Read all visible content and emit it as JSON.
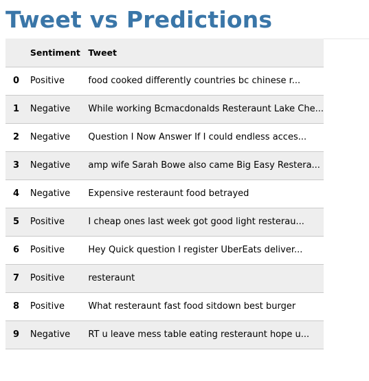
{
  "page": {
    "title": "Tweet vs Predictions"
  },
  "table": {
    "columns": [
      "",
      "Sentiment",
      "Tweet"
    ],
    "rows": [
      {
        "index": "0",
        "sentiment": "Positive",
        "tweet": "food cooked differently countries bc chinese r..."
      },
      {
        "index": "1",
        "sentiment": "Negative",
        "tweet": "While working Bcmacdonalds Resteraunt Lake Che..."
      },
      {
        "index": "2",
        "sentiment": "Negative",
        "tweet": "Question I Now Answer If I could endless acces..."
      },
      {
        "index": "3",
        "sentiment": "Negative",
        "tweet": "amp wife Sarah Bowe also came Big Easy Restera..."
      },
      {
        "index": "4",
        "sentiment": "Negative",
        "tweet": "Expensive resteraunt food betrayed"
      },
      {
        "index": "5",
        "sentiment": "Positive",
        "tweet": "I cheap ones last week got good light resterau..."
      },
      {
        "index": "6",
        "sentiment": "Positive",
        "tweet": "Hey Quick question I register UberEats deliver..."
      },
      {
        "index": "7",
        "sentiment": "Positive",
        "tweet": "resteraunt"
      },
      {
        "index": "8",
        "sentiment": "Positive",
        "tweet": "What resteraunt fast food sitdown best burger"
      },
      {
        "index": "9",
        "sentiment": "Negative",
        "tweet": "RT u leave mess table eating resteraunt hope u..."
      }
    ]
  },
  "colors": {
    "title": "#3a76a8",
    "header_bg": "#eeeeee",
    "stripe_bg": "#eeeeee",
    "row_border": "#c9c9c9"
  }
}
